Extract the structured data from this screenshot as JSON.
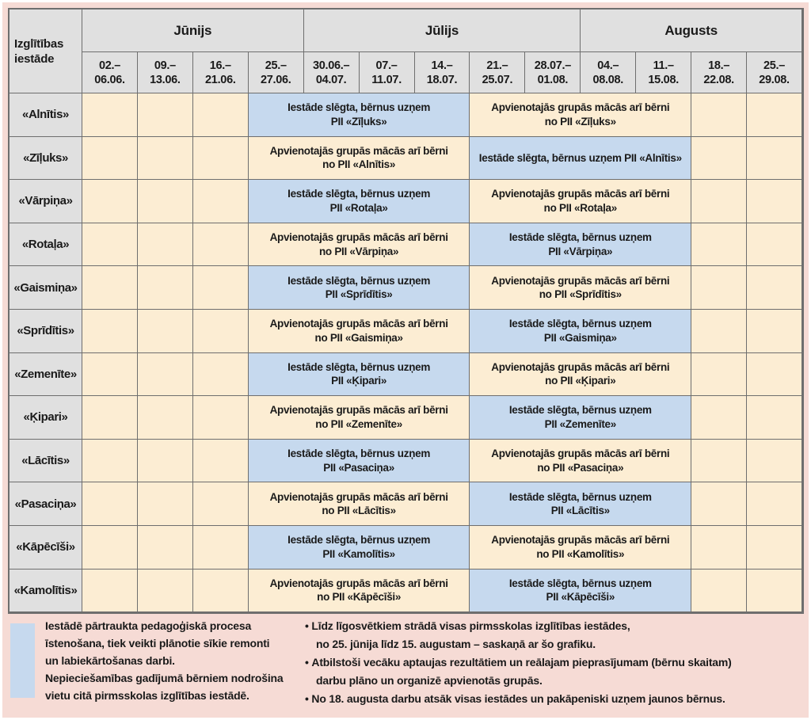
{
  "colors": {
    "closed_blue": "#c6d9ee",
    "open_beige": "#fcedd3",
    "header_gray": "#e0e0e0",
    "frame_pink": "#f6dbd5",
    "border_gray": "#6e6e6e"
  },
  "table": {
    "corner_header": "Izglītības\niestāde",
    "months": [
      {
        "label": "Jūnijs",
        "span": 4
      },
      {
        "label": "Jūlijs",
        "span": 5
      },
      {
        "label": "Augusts",
        "span": 4
      }
    ],
    "weeks": [
      "02.–\n06.06.",
      "09.–\n13.06.",
      "16.–\n21.06.",
      "25.–\n27.06.",
      "30.06.–\n04.07.",
      "07.–\n11.07.",
      "14.–\n18.07.",
      "21.–\n25.07.",
      "28.07.–\n01.08.",
      "04.–\n08.08.",
      "11.–\n15.08.",
      "18.–\n22.08.",
      "25.–\n29.08."
    ],
    "rows": [
      {
        "name": "«Alnītis»",
        "blocks": [
          {
            "type": "closed",
            "text": "Iestāde slēgta, bērnus uzņem\nPII «Zīļuks»"
          },
          {
            "type": "combined",
            "text": "Apvienotajās grupās mācās arī bērni\nno PII «Zīļuks»"
          }
        ]
      },
      {
        "name": "«Zīļuks»",
        "blocks": [
          {
            "type": "combined",
            "text": "Apvienotajās grupās mācās arī bērni\nno PII «Alnītis»"
          },
          {
            "type": "closed",
            "text": "Iestāde slēgta, bērnus uzņem PII «Alnītis»"
          }
        ]
      },
      {
        "name": "«Vārpiņa»",
        "blocks": [
          {
            "type": "closed",
            "text": "Iestāde slēgta, bērnus uzņem\nPII «Rotaļa»"
          },
          {
            "type": "combined",
            "text": "Apvienotajās grupās mācās arī bērni\nno PII «Rotaļa»"
          }
        ]
      },
      {
        "name": "«Rotaļa»",
        "blocks": [
          {
            "type": "combined",
            "text": "Apvienotajās grupās mācās arī bērni\nno PII «Vārpiņa»"
          },
          {
            "type": "closed",
            "text": "Iestāde slēgta, bērnus uzņem\nPII «Vārpiņa»"
          }
        ]
      },
      {
        "name": "«Gaismiņa»",
        "blocks": [
          {
            "type": "closed",
            "text": "Iestāde slēgta, bērnus uzņem\nPII «Sprīdītis»"
          },
          {
            "type": "combined",
            "text": "Apvienotajās grupās mācās arī bērni\nno PII «Sprīdītis»"
          }
        ]
      },
      {
        "name": "«Sprīdītis»",
        "blocks": [
          {
            "type": "combined",
            "text": "Apvienotajās grupās mācās arī bērni\nno PII «Gaismiņa»"
          },
          {
            "type": "closed",
            "text": "Iestāde slēgta, bērnus uzņem\nPII «Gaismiņa»"
          }
        ]
      },
      {
        "name": "«Zemenīte»",
        "blocks": [
          {
            "type": "closed",
            "text": "Iestāde slēgta, bērnus uzņem\nPII «Ķipari»"
          },
          {
            "type": "combined",
            "text": "Apvienotajās grupās mācās arī bērni\nno PII «Ķipari»"
          }
        ]
      },
      {
        "name": "«Ķipari»",
        "blocks": [
          {
            "type": "combined",
            "text": "Apvienotajās grupās mācās arī bērni\nno PII «Zemenīte»"
          },
          {
            "type": "closed",
            "text": "Iestāde slēgta, bērnus uzņem\nPII «Zemenīte»"
          }
        ]
      },
      {
        "name": "«Lācītis»",
        "blocks": [
          {
            "type": "closed",
            "text": "Iestāde slēgta, bērnus uzņem\nPII «Pasaciņa»"
          },
          {
            "type": "combined",
            "text": "Apvienotajās grupās mācās arī bērni\nno PII «Pasaciņa»"
          }
        ]
      },
      {
        "name": "«Pasaciņa»",
        "blocks": [
          {
            "type": "combined",
            "text": "Apvienotajās grupās mācās arī bērni\nno PII «Lācītis»"
          },
          {
            "type": "closed",
            "text": "Iestāde slēgta, bērnus uzņem\nPII «Lācītis»"
          }
        ]
      },
      {
        "name": "«Kāpēcīši»",
        "blocks": [
          {
            "type": "closed",
            "text": "Iestāde slēgta, bērnus uzņem\nPII «Kamolītis»"
          },
          {
            "type": "combined",
            "text": "Apvienotajās grupās mācās arī bērni\nno PII «Kamolītis»"
          }
        ]
      },
      {
        "name": "«Kamolītis»",
        "blocks": [
          {
            "type": "combined",
            "text": "Apvienotajās grupās mācās arī bērni\nno PII «Kāpēcīši»"
          },
          {
            "type": "closed",
            "text": "Iestāde slēgta, bērnus uzņem\nPII «Kāpēcīši»"
          }
        ]
      }
    ]
  },
  "legend": {
    "swatch_text": "Iestādē pārtraukta pedagoģiskā procesa\nīstenošana, tiek veikti plānotie sīkie remonti\nun labiekārtošanas darbi.\nNepieciešamības gadījumā bērniem nodrošina\nvietu citā pirmsskolas izglītības iestādē.",
    "bullets": [
      "Līdz līgosvētkiem strādā visas pirmsskolas izglītības iestādes,\nno 25. jūnija līdz 15. augustam – saskaņā ar šo grafiku.",
      "Atbilstoši vecāku aptaujas rezultātiem un reālajam pieprasījumam (bērnu skaitam)\ndarbu plāno un organizē apvienotās grupās.",
      "No 18. augusta darbu atsāk visas iestādes un pakāpeniski uzņem jaunos bērnus."
    ]
  }
}
